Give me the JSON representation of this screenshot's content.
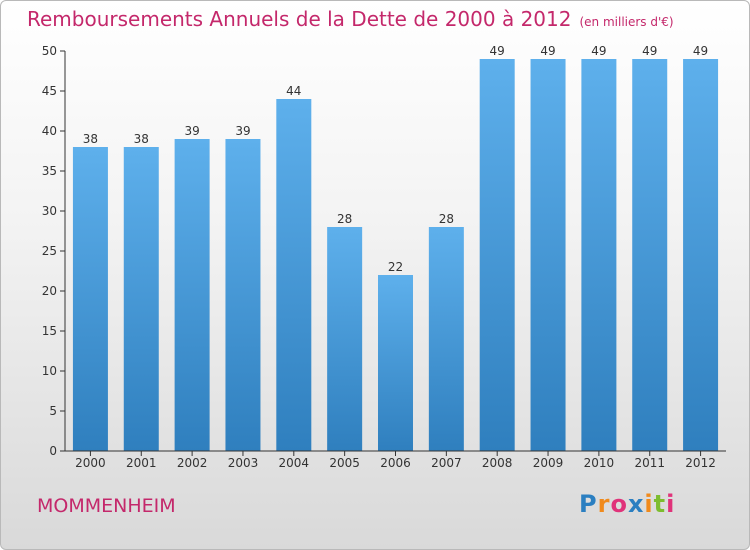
{
  "header": {
    "title": "Remboursements Annuels de la Dette de 2000 à 2012",
    "unit": "(en milliers d'€)"
  },
  "footer": {
    "place": "MOMMENHEIM",
    "logo": "Proxiti"
  },
  "colors": {
    "title": "#c4286b",
    "bar_top": "#5eb0ec",
    "bar_bottom": "#2f7fbe",
    "axis": "#333333"
  },
  "chart_data": {
    "type": "bar",
    "title": "Remboursements Annuels de la Dette de 2000 à 2012",
    "subtitle": "(en milliers d'€)",
    "categories": [
      "2000",
      "2001",
      "2002",
      "2003",
      "2004",
      "2005",
      "2006",
      "2007",
      "2008",
      "2009",
      "2010",
      "2011",
      "2012"
    ],
    "values": [
      38,
      38,
      39,
      39,
      44,
      28,
      22,
      28,
      49,
      49,
      49,
      49,
      49
    ],
    "ylim": [
      0,
      50
    ],
    "yticks": [
      0,
      5,
      10,
      15,
      20,
      25,
      30,
      35,
      40,
      45,
      50
    ],
    "grid": false,
    "legend": "none",
    "data_labels": true
  }
}
